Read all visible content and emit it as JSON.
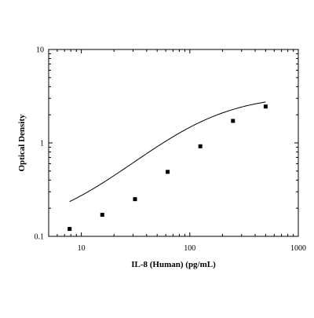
{
  "chart_data": {
    "type": "scatter",
    "title": "",
    "xlabel": "IL-8 (Human) (pg/mL)",
    "ylabel": "Optical Density",
    "x_scale": "log",
    "y_scale": "log",
    "xlim": [
      5,
      1000
    ],
    "ylim": [
      0.1,
      10
    ],
    "x_ticks": [
      10,
      100,
      1000
    ],
    "x_tick_labels": [
      "10",
      "100",
      "1000"
    ],
    "y_ticks": [
      0.1,
      1,
      10
    ],
    "y_tick_labels": [
      "0.1",
      "1",
      "10"
    ],
    "grid": false,
    "legend": "none",
    "series": [
      {
        "x": [
          7.8,
          15.6,
          31.25,
          62.5,
          125,
          250,
          500
        ],
        "y": [
          0.12,
          0.17,
          0.25,
          0.49,
          0.92,
          1.72,
          2.45
        ]
      }
    ],
    "fit_curve": {
      "type": "4PL",
      "min": 0.115,
      "max": 3.3,
      "ec50": 130,
      "slope": 1.15
    },
    "colors": {
      "marker": "#000000",
      "line": "#000000",
      "axis": "#000000"
    }
  }
}
